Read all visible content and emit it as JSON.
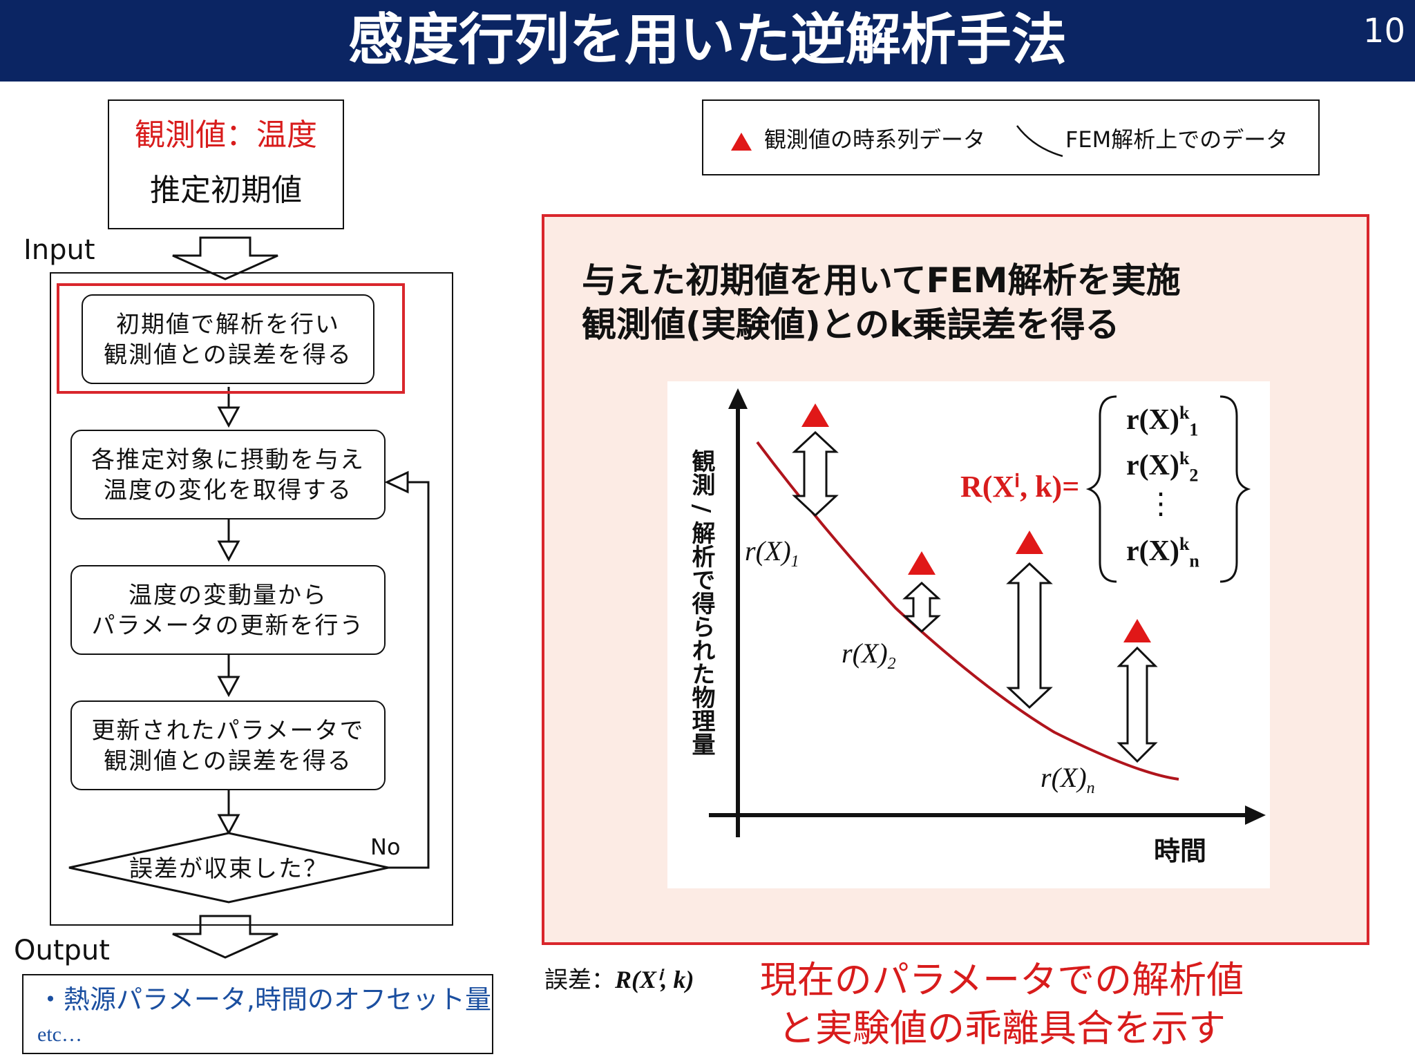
{
  "header": {
    "title": "感度行列を用いた逆解析手法",
    "page_number": "10"
  },
  "flowchart": {
    "input_box": {
      "line1": "観測値：温度",
      "line2": "推定初期値"
    },
    "input_label": "Input",
    "steps": [
      {
        "line1": "初期値で解析を行い",
        "line2": "観測値との誤差を得る"
      },
      {
        "line1": "各推定対象に摂動を与え",
        "line2": "温度の変化を取得する"
      },
      {
        "line1": "温度の変動量から",
        "line2": "パラメータの更新を行う"
      },
      {
        "line1": "更新されたパラメータで",
        "line2": "観測値との誤差を得る"
      }
    ],
    "decision": "誤差が収束した？",
    "no_label": "No",
    "output_label": "Output",
    "output_box": {
      "line1": "・熱源パラメータ,時間のオフセット量",
      "line2": "etc…"
    }
  },
  "legend": {
    "triangle": "観測値の時系列データ",
    "curve": "FEM解析上でのデータ"
  },
  "panel": {
    "line1": "与えた初期値を用いてFEM解析を実施",
    "line2": "観測値(実験値)とのk乗誤差を得る"
  },
  "graph": {
    "y_axis_label": "観測 / 解析で得られた物理量",
    "x_axis_label": "時間",
    "point_labels": [
      {
        "main": "r(X)",
        "sub": "1"
      },
      {
        "main": "r(X)",
        "sub": "2"
      },
      {
        "main": "r(X)",
        "sub": "n"
      }
    ],
    "formula_lhs": "R(Xⁱ, k)=",
    "vector_entries": [
      {
        "main": "r(X)",
        "sup": "k",
        "sub": "1"
      },
      {
        "main": "r(X)",
        "sup": "k",
        "sub": "2"
      },
      {
        "main": "⋮",
        "sup": "",
        "sub": ""
      },
      {
        "main": "r(X)",
        "sup": "k",
        "sub": "n"
      }
    ]
  },
  "error_note": {
    "label": "誤差：",
    "symbol": "R(Xⁱ, k)",
    "line1": "現在のパラメータでの解析値",
    "line2": "と実験値の乖離具合を示す"
  },
  "colors": {
    "header_bg": "#0b2563",
    "accent_red": "#d9262c",
    "curve": "#b0141c",
    "panel_bg": "#fcebe4",
    "output_text": "#1b4fa0"
  }
}
